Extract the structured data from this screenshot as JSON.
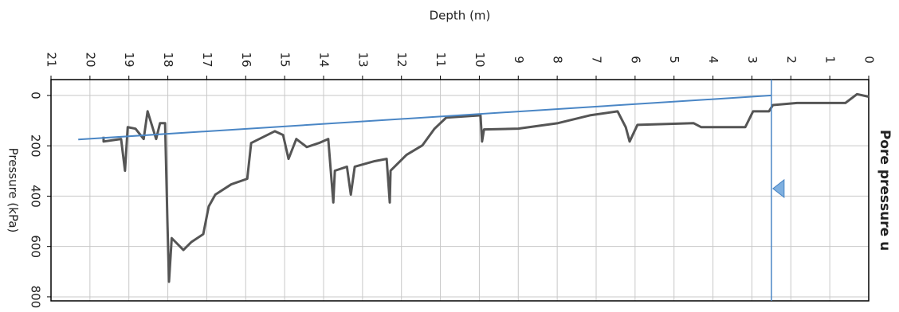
{
  "chart_data": {
    "type": "line",
    "title": "Depth (m)",
    "y_label": "Pressure (kPa)",
    "right_label": "Pore pressure u",
    "xlim": [
      21,
      0
    ],
    "xticks": [
      0,
      1,
      2,
      3,
      4,
      5,
      6,
      7,
      8,
      9,
      10,
      11,
      12,
      13,
      14,
      15,
      16,
      17,
      18,
      19,
      20,
      21
    ],
    "ylim": [
      -63,
      816
    ],
    "yticks": [
      0,
      200,
      400,
      600,
      800
    ],
    "grid": true,
    "series": [
      {
        "color": "#555555",
        "x": [
          0,
          0.3,
          0.6,
          1.84,
          2.46,
          2.56,
          2.97,
          3.17,
          4.3,
          4.5,
          5.94,
          6.14,
          6.24,
          6.45,
          7.16,
          7.98,
          9.0,
          9.88,
          9.93,
          9.97,
          10.85,
          11.15,
          11.46,
          11.87,
          12.28,
          12.3,
          12.38,
          12.69,
          13.2,
          13.3,
          13.4,
          13.71,
          13.75,
          13.88,
          14.12,
          14.43,
          14.7,
          14.9,
          15.04,
          15.25,
          15.86,
          15.96,
          16.37,
          16.78,
          16.95,
          17.09,
          17.4,
          17.6,
          17.9,
          17.97,
          18.01,
          18.07,
          18.2,
          18.3,
          18.52,
          18.62,
          18.83,
          19.03,
          19.1,
          19.2,
          19.65,
          19.65
        ],
        "values": [
          5,
          -5,
          30,
          30,
          38,
          63,
          63,
          126,
          126,
          110,
          117,
          183,
          126,
          63,
          79,
          110,
          132,
          135,
          183,
          79,
          88,
          132,
          198,
          236,
          299,
          425,
          252,
          261,
          283,
          394,
          283,
          299,
          425,
          173,
          189,
          205,
          173,
          252,
          157,
          142,
          189,
          331,
          353,
          394,
          441,
          551,
          583,
          614,
          567,
          740,
          504,
          110,
          110,
          173,
          63,
          173,
          132,
          126,
          299,
          173,
          183,
          164
        ]
      },
      {
        "color": "#4a86c5",
        "x": [
          2.5,
          20.3
        ],
        "values": [
          0,
          175
        ]
      }
    ],
    "water_level": {
      "depth": 2.5,
      "marker_pressure": 370,
      "color": "#4a86c5"
    }
  }
}
